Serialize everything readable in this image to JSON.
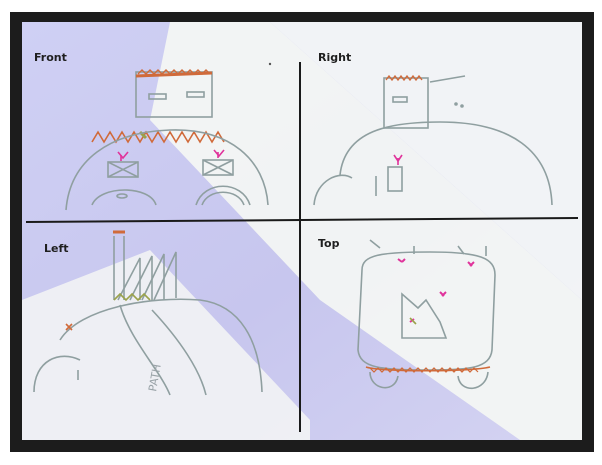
{
  "labels": {
    "front": "Front",
    "right": "Right",
    "left": "Left",
    "top": "Top",
    "path": "PATH"
  },
  "colors": {
    "paper_shadow": "#c9c9ef",
    "paper_light": "#f4f6f5",
    "pencil": "#8f9fa0",
    "divider": "#1a1a1a",
    "orange": "#d06a3a",
    "pink": "#e0339b",
    "olive": "#9aa24a"
  }
}
